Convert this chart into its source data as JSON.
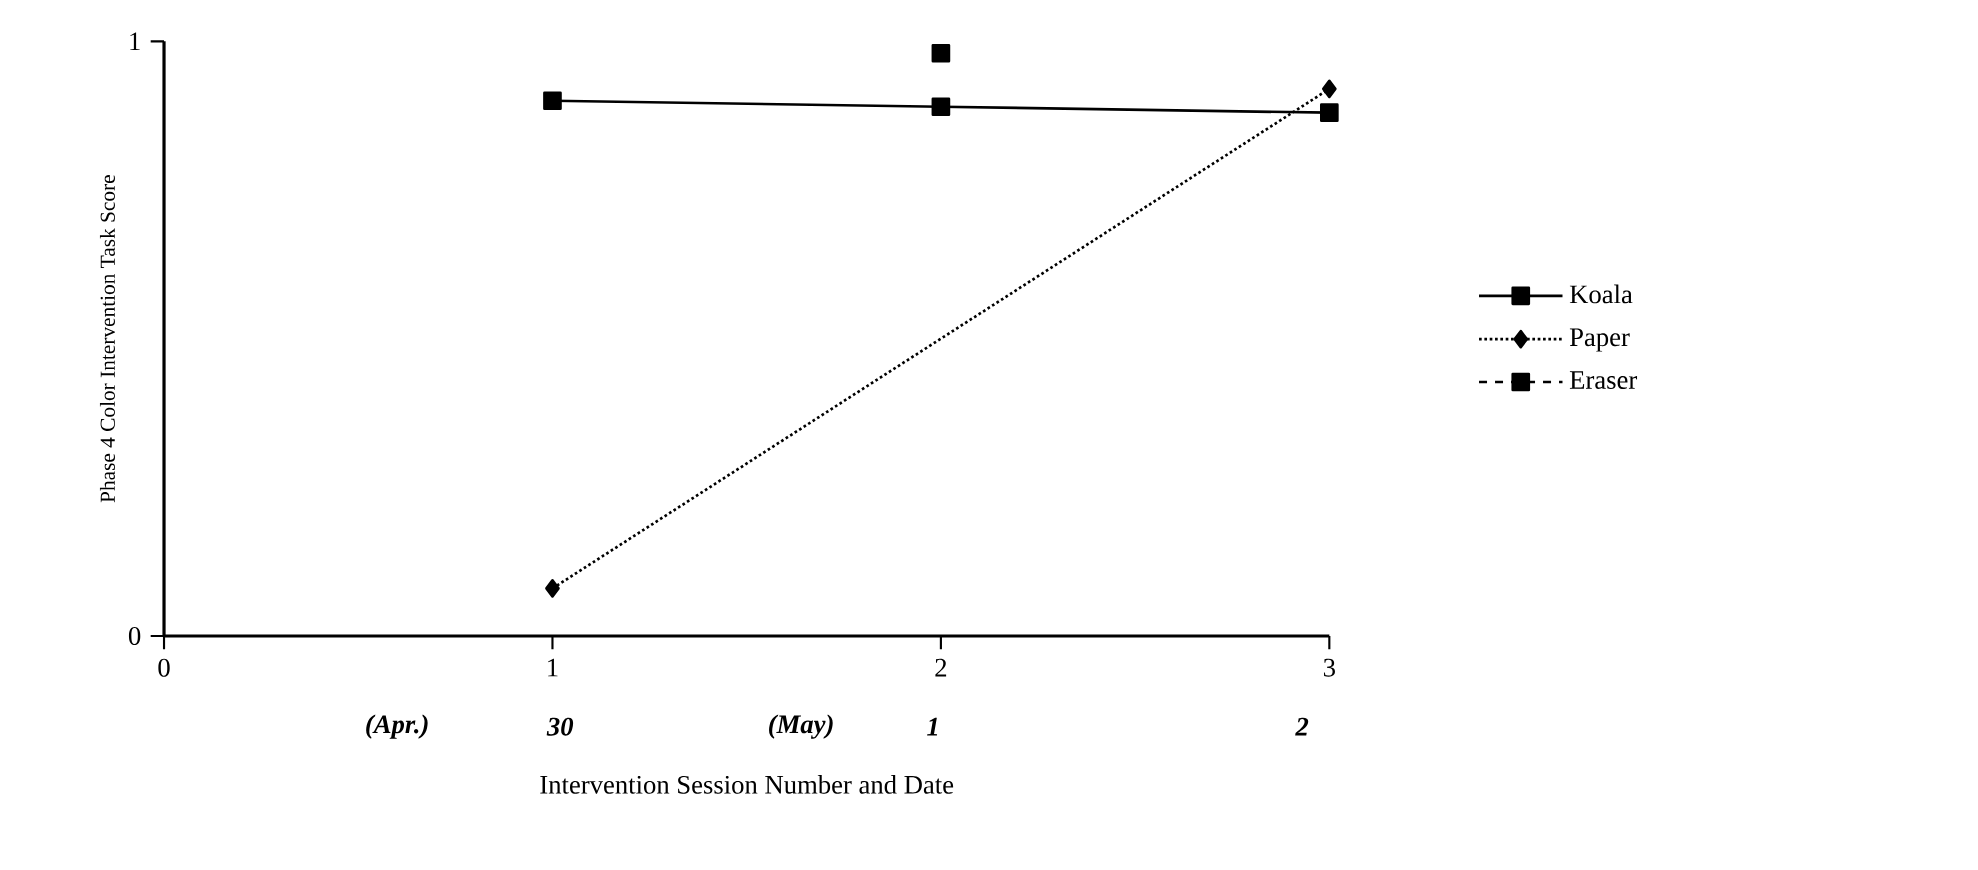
{
  "chart_data": {
    "type": "line",
    "xlabel": "Intervention Session Number and Date",
    "ylabel": "Phase 4 Color Intervention Task Score",
    "xlim": [
      0,
      3
    ],
    "xticks": [
      0,
      1,
      2,
      3
    ],
    "ylim": [
      0,
      1
    ],
    "yticks": [
      0,
      1
    ],
    "grid": false,
    "legend": "right",
    "annotations": [
      "(Apr.)",
      "30",
      "(May)",
      "1",
      "2"
    ],
    "series": [
      {
        "name": "Koala",
        "color": "#000000",
        "x": [
          1,
          2,
          3
        ],
        "values": [
          0.9,
          0.89,
          0.88
        ],
        "marker": "square",
        "line_style": "solid"
      },
      {
        "name": "Paper",
        "color": "#000000",
        "x": [
          1,
          3
        ],
        "values": [
          0.08,
          0.92
        ],
        "marker": "diamond",
        "line_style": "dotted"
      },
      {
        "name": "Eraser",
        "color": "#000000",
        "x": [
          2
        ],
        "values": [
          0.98
        ],
        "marker": "square",
        "line_style": "dashed"
      }
    ]
  }
}
